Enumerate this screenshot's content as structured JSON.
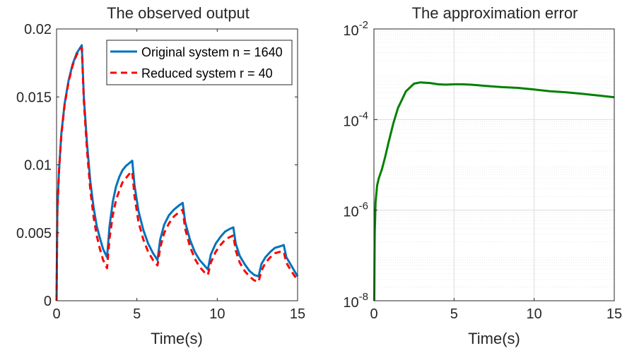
{
  "chart_data": [
    {
      "type": "line",
      "title": "The observed output",
      "xlabel": "Time(s)",
      "ylabel": "",
      "xlim": [
        0,
        15
      ],
      "ylim": [
        0,
        0.02
      ],
      "xticks": [
        "0",
        "5",
        "10",
        "15"
      ],
      "yticks": [
        "0",
        "0.005",
        "0.01",
        "0.015",
        "0.02"
      ],
      "xtick_values": [
        0,
        5,
        10,
        15
      ],
      "ytick_values": [
        0,
        0.005,
        0.01,
        0.015,
        0.02
      ],
      "grid": false,
      "legend_position": "top-right",
      "series": [
        {
          "name": "Original system n = 1640",
          "color": "#0072BD",
          "style": "solid",
          "x": [
            0,
            0.05,
            0.15,
            0.3,
            0.5,
            0.75,
            1.0,
            1.25,
            1.57,
            1.7,
            1.9,
            2.1,
            2.3,
            2.5,
            2.7,
            2.9,
            3.14,
            3.3,
            3.5,
            3.7,
            3.9,
            4.1,
            4.3,
            4.5,
            4.71,
            4.85,
            5.1,
            5.4,
            5.7,
            6.0,
            6.28,
            6.45,
            6.7,
            7.0,
            7.3,
            7.6,
            7.85,
            8.0,
            8.3,
            8.6,
            8.9,
            9.2,
            9.42,
            9.6,
            9.9,
            10.2,
            10.5,
            10.8,
            11.0,
            11.15,
            11.4,
            11.7,
            12.0,
            12.3,
            12.57,
            12.75,
            13.0,
            13.3,
            13.6,
            13.9,
            14.14,
            14.3,
            14.6,
            15.0
          ],
          "y": [
            0,
            0.0065,
            0.0095,
            0.0123,
            0.0145,
            0.0162,
            0.0174,
            0.0182,
            0.0188,
            0.015,
            0.0115,
            0.0088,
            0.0069,
            0.0055,
            0.0046,
            0.0038,
            0.0032,
            0.0055,
            0.0073,
            0.0084,
            0.0091,
            0.0096,
            0.0099,
            0.0101,
            0.0103,
            0.0085,
            0.0066,
            0.0052,
            0.0042,
            0.0035,
            0.003,
            0.0045,
            0.0056,
            0.0063,
            0.0067,
            0.007,
            0.0072,
            0.0058,
            0.0045,
            0.0036,
            0.003,
            0.0026,
            0.0023,
            0.0034,
            0.0042,
            0.0047,
            0.0051,
            0.0053,
            0.0054,
            0.0042,
            0.0033,
            0.0027,
            0.0022,
            0.0019,
            0.0018,
            0.0027,
            0.0032,
            0.0036,
            0.0039,
            0.004,
            0.0041,
            0.0032,
            0.0026,
            0.0018
          ]
        },
        {
          "name": "Reduced system r = 40",
          "color": "#FF0000",
          "style": "dashed",
          "x": [
            0,
            0.05,
            0.15,
            0.3,
            0.5,
            0.75,
            1.0,
            1.25,
            1.57,
            1.7,
            1.9,
            2.1,
            2.3,
            2.5,
            2.7,
            2.9,
            3.14,
            3.3,
            3.5,
            3.7,
            3.9,
            4.1,
            4.3,
            4.5,
            4.71,
            4.85,
            5.1,
            5.4,
            5.7,
            6.0,
            6.28,
            6.45,
            6.7,
            7.0,
            7.3,
            7.6,
            7.85,
            8.0,
            8.3,
            8.6,
            8.9,
            9.2,
            9.42,
            9.6,
            9.9,
            10.2,
            10.5,
            10.8,
            11.0,
            11.15,
            11.4,
            11.7,
            12.0,
            12.3,
            12.57,
            12.75,
            13.0,
            13.3,
            13.6,
            13.9,
            14.14,
            14.3,
            14.6,
            15.0
          ],
          "y": [
            0,
            0.0065,
            0.0095,
            0.0122,
            0.0144,
            0.0161,
            0.0173,
            0.0181,
            0.0186,
            0.0147,
            0.011,
            0.0082,
            0.0062,
            0.0048,
            0.0038,
            0.003,
            0.0024,
            0.0046,
            0.0063,
            0.0074,
            0.0081,
            0.0087,
            0.009,
            0.0093,
            0.0095,
            0.0077,
            0.0058,
            0.0045,
            0.0036,
            0.003,
            0.0026,
            0.0039,
            0.005,
            0.0057,
            0.0062,
            0.0065,
            0.0067,
            0.0053,
            0.004,
            0.0031,
            0.0025,
            0.0021,
            0.0019,
            0.0028,
            0.0036,
            0.0041,
            0.0045,
            0.0047,
            0.0048,
            0.0037,
            0.0028,
            0.0022,
            0.0018,
            0.0015,
            0.0014,
            0.0022,
            0.0028,
            0.0032,
            0.0035,
            0.0036,
            0.0036,
            0.0028,
            0.0022,
            0.0015
          ]
        }
      ]
    },
    {
      "type": "line",
      "title": "The approximation error",
      "xlabel": "Time(s)",
      "ylabel": "",
      "xlim": [
        0,
        15
      ],
      "ylim": [
        1e-08,
        0.01
      ],
      "yscale": "log",
      "xticks": [
        "0",
        "5",
        "10",
        "15"
      ],
      "yticks": [
        {
          "base": "10",
          "exp": "-8"
        },
        {
          "base": "10",
          "exp": "-6"
        },
        {
          "base": "10",
          "exp": "-4"
        },
        {
          "base": "10",
          "exp": "-2"
        }
      ],
      "xtick_values": [
        0,
        5,
        10,
        15
      ],
      "ytick_values": [
        1e-08,
        1e-06,
        0.0001,
        0.01
      ],
      "grid": true,
      "series": [
        {
          "color": "#008000",
          "style": "solid",
          "x": [
            0.02,
            0.05,
            0.1,
            0.2,
            0.3,
            0.5,
            0.7,
            0.9,
            1.2,
            1.5,
            2.0,
            2.5,
            2.9,
            3.5,
            4.0,
            4.5,
            5.0,
            5.5,
            6.0,
            6.5,
            7.0,
            8.0,
            9.0,
            10.0,
            11.0,
            12.0,
            13.0,
            14.0,
            15.0
          ],
          "y": [
            1e-08,
            3e-07,
            1.5e-06,
            3.5e-06,
            5e-06,
            8e-06,
            1.5e-05,
            3e-05,
            8e-05,
            0.00018,
            0.00042,
            0.00062,
            0.00066,
            0.00064,
            0.0006,
            0.00059,
            0.0006,
            0.0006,
            0.00059,
            0.00057,
            0.00055,
            0.00052,
            0.0005,
            0.00046,
            0.00042,
            0.0004,
            0.00037,
            0.00034,
            0.00031
          ]
        }
      ]
    }
  ]
}
